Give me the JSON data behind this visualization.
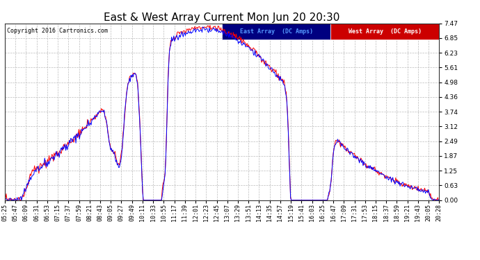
{
  "title": "East & West Array Current Mon Jun 20 20:30",
  "copyright": "Copyright 2016 Cartronics.com",
  "legend_east": "East Array  (DC Amps)",
  "legend_west": "West Array  (DC Amps)",
  "east_color": "#0000FF",
  "west_color": "#FF0000",
  "legend_east_bg": "#000080",
  "legend_west_bg": "#CC0000",
  "yticks": [
    0.0,
    0.63,
    1.25,
    1.87,
    2.49,
    3.12,
    3.74,
    4.36,
    4.98,
    5.61,
    6.23,
    6.85,
    7.47
  ],
  "ymax": 7.47,
  "ymin": 0.0,
  "bg_color": "#ffffff",
  "plot_bg": "#ffffff",
  "grid_color": "#bbbbbb",
  "title_fontsize": 11,
  "tick_fontsize": 6,
  "time_labels": [
    "05:25",
    "05:47",
    "06:09",
    "06:31",
    "06:53",
    "07:15",
    "07:37",
    "07:59",
    "08:21",
    "08:43",
    "09:05",
    "09:27",
    "09:49",
    "10:11",
    "10:33",
    "10:55",
    "11:17",
    "11:39",
    "12:01",
    "12:23",
    "12:45",
    "13:07",
    "13:29",
    "13:51",
    "14:13",
    "14:35",
    "14:57",
    "15:19",
    "15:41",
    "16:03",
    "16:25",
    "16:47",
    "17:09",
    "17:31",
    "17:53",
    "18:15",
    "18:37",
    "18:59",
    "19:21",
    "19:43",
    "20:05",
    "20:28"
  ]
}
